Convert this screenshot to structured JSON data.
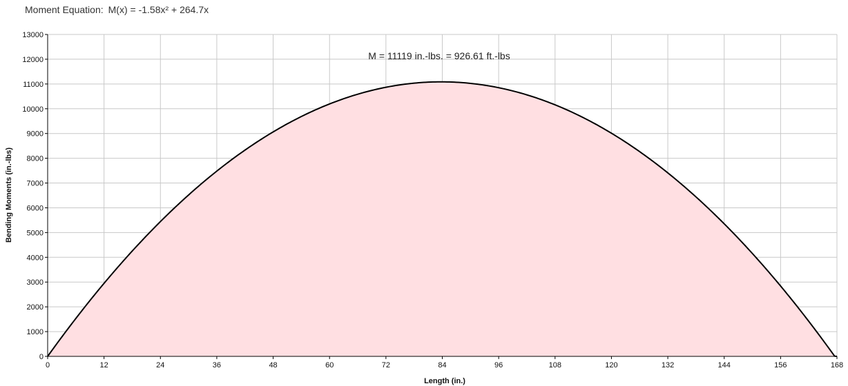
{
  "equation": {
    "label": "Moment Equation:",
    "value": "M(x) = -1.58x² + 264.7x"
  },
  "chart_data": {
    "type": "area",
    "xlabel": "Length (in.)",
    "ylabel": "Bending Moments (in.-lbs)",
    "xlim": [
      0,
      168
    ],
    "ylim": [
      0,
      13000
    ],
    "xticks": [
      0,
      12,
      24,
      36,
      48,
      60,
      72,
      84,
      96,
      108,
      120,
      132,
      144,
      156,
      168
    ],
    "yticks": [
      0,
      1000,
      2000,
      3000,
      4000,
      5000,
      6000,
      7000,
      8000,
      9000,
      10000,
      11000,
      12000,
      13000
    ],
    "grid": true,
    "annotation": "M = 11119 in.-lbs. = 926.61 ft.-lbs",
    "curve": {
      "a": -1.58,
      "b": 264.7
    },
    "x": [
      0,
      12,
      24,
      36,
      48,
      60,
      72,
      84,
      96,
      108,
      120,
      132,
      144,
      156,
      168
    ],
    "y": [
      0,
      2949,
      5443,
      7481,
      9065,
      10194,
      10868,
      11086,
      10850,
      10158,
      9012,
      7410,
      5354,
      2843,
      -123
    ],
    "colors": {
      "fill": "#ffdfe2",
      "line": "#000000",
      "grid": "#c8c8c8"
    }
  }
}
